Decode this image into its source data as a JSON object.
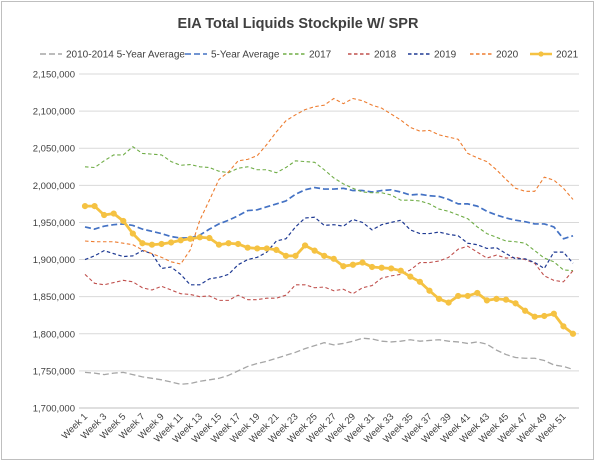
{
  "chart_data": {
    "type": "line",
    "title": "EIA Total Liquids Stockpile W/ SPR",
    "xlabel": "",
    "ylabel": "",
    "ylim": [
      1700000,
      2150000
    ],
    "y_ticks": [
      "1,700,000",
      "1,750,000",
      "1,800,000",
      "1,850,000",
      "1,900,000",
      "1,950,000",
      "2,000,000",
      "2,050,000",
      "2,100,000",
      "2,150,000"
    ],
    "y_tick_values": [
      1700000,
      1750000,
      1800000,
      1850000,
      1900000,
      1950000,
      2000000,
      2050000,
      2100000,
      2150000
    ],
    "x_count": 52,
    "x_tick_labels": [
      "Week 1",
      "Week 3",
      "Week 5",
      "Week 7",
      "Week 9",
      "Week 11",
      "Week 13",
      "Week 15",
      "Week 17",
      "Week 19",
      "Week 21",
      "Week 23",
      "Week 25",
      "Week 27",
      "Week 29",
      "Week 31",
      "Week 33",
      "Week 35",
      "Week 37",
      "Week 39",
      "Week 41",
      "Week 43",
      "Week 45",
      "Week 47",
      "Week 49",
      "Week 51"
    ],
    "grid": true,
    "legend_position": "top",
    "series": [
      {
        "name": "2010-2014 5-Year Average",
        "color": "#a6a6a6",
        "dash": "dash",
        "width": 1.3,
        "values": [
          1748000,
          1747000,
          1745000,
          1747000,
          1748000,
          1745000,
          1742000,
          1740000,
          1738000,
          1735000,
          1732000,
          1733000,
          1736000,
          1738000,
          1740000,
          1744000,
          1750000,
          1756000,
          1760000,
          1763000,
          1767000,
          1771000,
          1775000,
          1780000,
          1784000,
          1788000,
          1785000,
          1787000,
          1790000,
          1794000,
          1793000,
          1790000,
          1789000,
          1790000,
          1792000,
          1790000,
          1791000,
          1792000,
          1790000,
          1789000,
          1787000,
          1789000,
          1786000,
          1778000,
          1772000,
          1768000,
          1767000,
          1767000,
          1764000,
          1758000,
          1756000,
          1752000
        ]
      },
      {
        "name": "5-Year Average",
        "color": "#4472c4",
        "dash": "dash",
        "width": 1.7,
        "values": [
          1944000,
          1941000,
          1945000,
          1947000,
          1948000,
          1946000,
          1941000,
          1938000,
          1935000,
          1931000,
          1929000,
          1929000,
          1933000,
          1941000,
          1948000,
          1953000,
          1959000,
          1966000,
          1967000,
          1971000,
          1975000,
          1979000,
          1988000,
          1994000,
          1997000,
          1995000,
          1995000,
          1996000,
          1993000,
          1993000,
          1991000,
          1993000,
          1994000,
          1991000,
          1987000,
          1988000,
          1986000,
          1985000,
          1981000,
          1975000,
          1975000,
          1972000,
          1965000,
          1960000,
          1956000,
          1953000,
          1951000,
          1948000,
          1948000,
          1944000,
          1928000,
          1932000
        ]
      },
      {
        "name": "2017",
        "color": "#70ad47",
        "dash": "dash2",
        "width": 1.1,
        "values": [
          2025000,
          2024000,
          2033000,
          2041000,
          2041000,
          2052000,
          2043000,
          2042000,
          2041000,
          2032000,
          2027000,
          2028000,
          2025000,
          2024000,
          2019000,
          2017000,
          2023000,
          2025000,
          2021000,
          2021000,
          2017000,
          2024000,
          2033000,
          2032000,
          2031000,
          2021000,
          2010000,
          2002000,
          1996000,
          1991000,
          1990000,
          1990000,
          1987000,
          1980000,
          1980000,
          1979000,
          1975000,
          1968000,
          1965000,
          1960000,
          1955000,
          1944000,
          1935000,
          1930000,
          1925000,
          1924000,
          1922000,
          1912000,
          1902000,
          1897000,
          1886000,
          1885000
        ]
      },
      {
        "name": "2018",
        "color": "#c0504d",
        "dash": "dash2",
        "width": 1.1,
        "values": [
          1880000,
          1868000,
          1866000,
          1869000,
          1872000,
          1870000,
          1862000,
          1859000,
          1864000,
          1859000,
          1854000,
          1853000,
          1850000,
          1851000,
          1845000,
          1845000,
          1852000,
          1846000,
          1846000,
          1848000,
          1848000,
          1852000,
          1866000,
          1866000,
          1862000,
          1863000,
          1858000,
          1860000,
          1854000,
          1862000,
          1865000,
          1875000,
          1878000,
          1880000,
          1886000,
          1896000,
          1896000,
          1898000,
          1903000,
          1914000,
          1918000,
          1910000,
          1902000,
          1906000,
          1902000,
          1903000,
          1900000,
          1895000,
          1878000,
          1872000,
          1870000,
          1885000
        ]
      },
      {
        "name": "2019",
        "color": "#1f3a93",
        "dash": "dash2",
        "width": 1.2,
        "values": [
          1900000,
          1905000,
          1912000,
          1908000,
          1904000,
          1905000,
          1912000,
          1908000,
          1888000,
          1890000,
          1880000,
          1866000,
          1866000,
          1874000,
          1876000,
          1880000,
          1893000,
          1900000,
          1903000,
          1910000,
          1925000,
          1928000,
          1944000,
          1956000,
          1957000,
          1946000,
          1947000,
          1945000,
          1954000,
          1950000,
          1940000,
          1947000,
          1950000,
          1953000,
          1940000,
          1935000,
          1935000,
          1937000,
          1934000,
          1932000,
          1922000,
          1920000,
          1915000,
          1916000,
          1908000,
          1901000,
          1901000,
          1896000,
          1888000,
          1910000,
          1910000,
          1895000
        ]
      },
      {
        "name": "2020",
        "color": "#ed7d31",
        "dash": "dash2",
        "width": 1.1,
        "values": [
          1925000,
          1924000,
          1924000,
          1924000,
          1922000,
          1920000,
          1913000,
          1908000,
          1903000,
          1897000,
          1894000,
          1913000,
          1953000,
          1980000,
          2008000,
          2018000,
          2033000,
          2035000,
          2040000,
          2055000,
          2072000,
          2087000,
          2095000,
          2102000,
          2106000,
          2108000,
          2117000,
          2110000,
          2117000,
          2114000,
          2108000,
          2104000,
          2096000,
          2088000,
          2078000,
          2073000,
          2074000,
          2068000,
          2065000,
          2062000,
          2043000,
          2037000,
          2032000,
          2021000,
          2008000,
          1996000,
          1992000,
          1992000,
          2011000,
          2007000,
          1996000,
          1981000
        ]
      },
      {
        "name": "2021",
        "color": "#f5c242",
        "dash": "solid",
        "width": 2.8,
        "markers": true,
        "values": [
          1972000,
          1972000,
          1960000,
          1962000,
          1952000,
          1935000,
          1922000,
          1920000,
          1921000,
          1923000,
          1926000,
          1928000,
          1930000,
          1929000,
          1920000,
          1922000,
          1921000,
          1916000,
          1915000,
          1915000,
          1913000,
          1905000,
          1905000,
          1919000,
          1912000,
          1905000,
          1901000,
          1891000,
          1893000,
          1896000,
          1890000,
          1889000,
          1888000,
          1885000,
          1877000,
          1870000,
          1858000,
          1847000,
          1842000,
          1851000,
          1851000,
          1855000,
          1845000,
          1847000,
          1846000,
          1841000,
          1831000,
          1823000,
          1824000,
          1827000,
          1810000,
          1800000
        ]
      }
    ]
  }
}
